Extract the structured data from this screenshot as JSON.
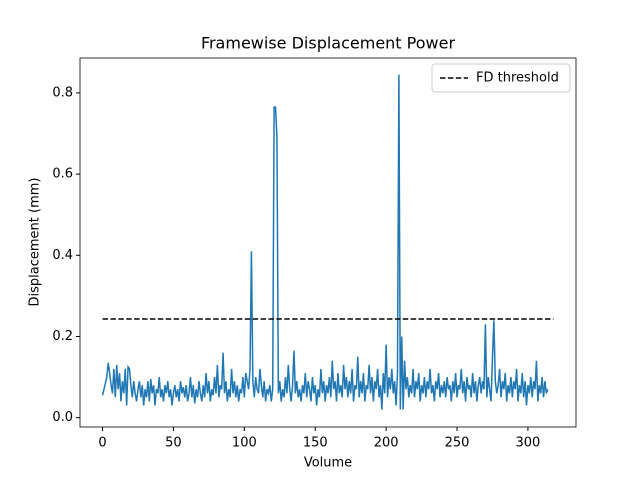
{
  "chart_data": {
    "type": "line",
    "title": "Framewise Displacement Power",
    "xlabel": "Volume",
    "ylabel": "Displacement (mm)",
    "series": [
      {
        "color": "#1f77b4",
        "x": [
          0,
          1,
          2,
          3,
          4,
          5,
          6,
          7,
          8,
          9,
          10,
          11,
          12,
          13,
          14,
          15,
          16,
          17,
          18,
          19,
          20,
          21,
          22,
          23,
          24,
          25,
          26,
          27,
          28,
          29,
          30,
          31,
          32,
          33,
          34,
          35,
          36,
          37,
          38,
          39,
          40,
          41,
          42,
          43,
          44,
          45,
          46,
          47,
          48,
          49,
          50,
          51,
          52,
          53,
          54,
          55,
          56,
          57,
          58,
          59,
          60,
          61,
          62,
          63,
          64,
          65,
          66,
          67,
          68,
          69,
          70,
          71,
          72,
          73,
          74,
          75,
          76,
          77,
          78,
          79,
          80,
          81,
          82,
          83,
          84,
          85,
          86,
          87,
          88,
          89,
          90,
          91,
          92,
          93,
          94,
          95,
          96,
          97,
          98,
          99,
          100,
          101,
          102,
          103,
          104,
          105,
          106,
          107,
          108,
          109,
          110,
          111,
          112,
          113,
          114,
          115,
          116,
          117,
          118,
          119,
          120,
          121,
          122,
          123,
          124,
          125,
          126,
          127,
          128,
          129,
          130,
          131,
          132,
          133,
          134,
          135,
          136,
          137,
          138,
          139,
          140,
          141,
          142,
          143,
          144,
          145,
          146,
          147,
          148,
          149,
          150,
          151,
          152,
          153,
          154,
          155,
          156,
          157,
          158,
          159,
          160,
          161,
          162,
          163,
          164,
          165,
          166,
          167,
          168,
          169,
          170,
          171,
          172,
          173,
          174,
          175,
          176,
          177,
          178,
          179,
          180,
          181,
          182,
          183,
          184,
          185,
          186,
          187,
          188,
          189,
          190,
          191,
          192,
          193,
          194,
          195,
          196,
          197,
          198,
          199,
          200,
          201,
          202,
          203,
          204,
          205,
          206,
          207,
          208,
          209,
          210,
          211,
          212,
          213,
          214,
          215,
          216,
          217,
          218,
          219,
          220,
          221,
          222,
          223,
          224,
          225,
          226,
          227,
          228,
          229,
          230,
          231,
          232,
          233,
          234,
          235,
          236,
          237,
          238,
          239,
          240,
          241,
          242,
          243,
          244,
          245,
          246,
          247,
          248,
          249,
          250,
          251,
          252,
          253,
          254,
          255,
          256,
          257,
          258,
          259,
          260,
          261,
          262,
          263,
          264,
          265,
          266,
          267,
          268,
          269,
          270,
          271,
          272,
          273,
          274,
          275,
          276,
          277,
          278,
          279,
          280,
          281,
          282,
          283,
          284,
          285,
          286,
          287,
          288,
          289,
          290,
          291,
          292,
          293,
          294,
          295,
          296,
          297,
          298,
          299,
          300,
          301,
          302,
          303,
          304,
          305,
          306,
          307,
          308,
          309,
          310,
          311,
          312,
          313,
          314
        ],
        "values": [
          0.055,
          0.07,
          0.085,
          0.1,
          0.135,
          0.11,
          0.08,
          0.06,
          0.12,
          0.05,
          0.13,
          0.07,
          0.11,
          0.04,
          0.09,
          0.06,
          0.12,
          0.03,
          0.125,
          0.12,
          0.08,
          0.05,
          0.09,
          0.06,
          0.04,
          0.07,
          0.09,
          0.05,
          0.08,
          0.03,
          0.07,
          0.05,
          0.09,
          0.04,
          0.095,
          0.06,
          0.08,
          0.03,
          0.07,
          0.06,
          0.1,
          0.05,
          0.07,
          0.04,
          0.08,
          0.06,
          0.09,
          0.05,
          0.07,
          0.03,
          0.06,
          0.08,
          0.05,
          0.07,
          0.04,
          0.09,
          0.06,
          0.075,
          0.05,
          0.08,
          0.04,
          0.06,
          0.1,
          0.05,
          0.08,
          0.035,
          0.07,
          0.05,
          0.09,
          0.06,
          0.04,
          0.08,
          0.05,
          0.11,
          0.06,
          0.09,
          0.04,
          0.07,
          0.055,
          0.1,
          0.06,
          0.13,
          0.05,
          0.08,
          0.07,
          0.16,
          0.06,
          0.09,
          0.04,
          0.07,
          0.05,
          0.12,
          0.06,
          0.09,
          0.05,
          0.08,
          0.04,
          0.07,
          0.06,
          0.1,
          0.05,
          0.11,
          0.09,
          0.07,
          0.12,
          0.41,
          0.09,
          0.05,
          0.1,
          0.07,
          0.06,
          0.12,
          0.08,
          0.05,
          0.09,
          0.04,
          0.07,
          0.06,
          0.08,
          0.04,
          0.07,
          0.765,
          0.765,
          0.69,
          0.06,
          0.09,
          0.04,
          0.07,
          0.05,
          0.1,
          0.06,
          0.13,
          0.07,
          0.04,
          0.08,
          0.165,
          0.06,
          0.09,
          0.05,
          0.07,
          0.04,
          0.08,
          0.06,
          0.11,
          0.05,
          0.09,
          0.07,
          0.04,
          0.1,
          0.06,
          0.08,
          0.03,
          0.07,
          0.05,
          0.12,
          0.06,
          0.09,
          0.04,
          0.08,
          0.06,
          0.1,
          0.05,
          0.14,
          0.07,
          0.09,
          0.04,
          0.11,
          0.06,
          0.08,
          0.05,
          0.13,
          0.07,
          0.1,
          0.05,
          0.09,
          0.06,
          0.12,
          0.04,
          0.08,
          0.07,
          0.15,
          0.05,
          0.09,
          0.06,
          0.11,
          0.04,
          0.08,
          0.07,
          0.13,
          0.06,
          0.1,
          0.04,
          0.09,
          0.07,
          0.12,
          0.05,
          0.08,
          0.02,
          0.11,
          0.06,
          0.18,
          0.05,
          0.1,
          0.07,
          0.12,
          0.06,
          0.09,
          0.03,
          0.11,
          0.845,
          0.02,
          0.2,
          0.02,
          0.14,
          0.07,
          0.1,
          0.05,
          0.08,
          0.06,
          0.12,
          0.05,
          0.09,
          0.07,
          0.11,
          0.04,
          0.08,
          0.06,
          0.1,
          0.05,
          0.09,
          0.07,
          0.12,
          0.06,
          0.08,
          0.04,
          0.09,
          0.07,
          0.11,
          0.05,
          0.08,
          0.06,
          0.09,
          0.05,
          0.1,
          0.07,
          0.08,
          0.04,
          0.09,
          0.06,
          0.11,
          0.05,
          0.08,
          0.07,
          0.12,
          0.06,
          0.09,
          0.04,
          0.1,
          0.07,
          0.08,
          0.05,
          0.11,
          0.06,
          0.09,
          0.04,
          0.08,
          0.1,
          0.06,
          0.09,
          0.07,
          0.23,
          0.05,
          0.1,
          0.07,
          0.04,
          0.15,
          0.24,
          0.09,
          0.06,
          0.08,
          0.12,
          0.05,
          0.09,
          0.07,
          0.11,
          0.04,
          0.08,
          0.06,
          0.1,
          0.05,
          0.09,
          0.07,
          0.12,
          0.04,
          0.08,
          0.06,
          0.11,
          0.05,
          0.09,
          0.03,
          0.08,
          0.06,
          0.1,
          0.05,
          0.09,
          0.07,
          0.14,
          0.04,
          0.08,
          0.06,
          0.1,
          0.05,
          0.09,
          0.06,
          0.07
        ]
      },
      {
        "name": "FD threshold",
        "color": "#000000",
        "dashed": true,
        "x": [
          0,
          318
        ],
        "values": [
          0.243,
          0.243
        ]
      }
    ],
    "xlim": [
      -15.9,
      333.9
    ],
    "xticks": [
      0,
      50,
      100,
      150,
      200,
      250,
      300
    ],
    "ylim": [
      -0.023,
      0.886
    ],
    "yticks": [
      {
        "value": 0,
        "label": "0.0"
      },
      0.2,
      0.4,
      0.6,
      0.8
    ],
    "legend": "upper right"
  }
}
